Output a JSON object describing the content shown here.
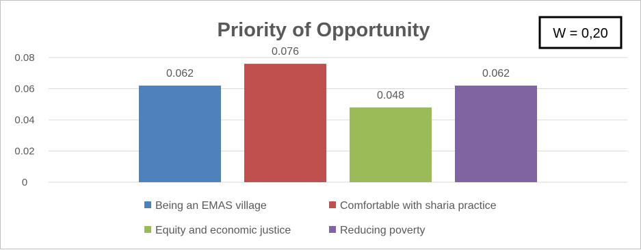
{
  "annotation": {
    "text": "W = 0,20"
  },
  "chart_data": {
    "type": "bar",
    "title": "Priority of Opportunity",
    "xlabel": "",
    "ylabel": "",
    "ylim": [
      0,
      0.08
    ],
    "yticks": [
      0,
      0.02,
      0.04,
      0.06,
      0.08
    ],
    "ytick_labels": [
      "0",
      "0.02",
      "0.04",
      "0.06",
      "0.08"
    ],
    "grid": true,
    "legend_position": "bottom",
    "series": [
      {
        "name": "Being an EMAS village",
        "value": 0.062,
        "label": "0.062",
        "color": "#4f81bd"
      },
      {
        "name": "Comfortable with sharia practice",
        "value": 0.076,
        "label": "0.076",
        "color": "#c0504d"
      },
      {
        "name": "Equity and economic justice",
        "value": 0.048,
        "label": "0.048",
        "color": "#9bbb59"
      },
      {
        "name": "Reducing poverty",
        "value": 0.062,
        "label": "0.062",
        "color": "#8064a2"
      }
    ]
  }
}
